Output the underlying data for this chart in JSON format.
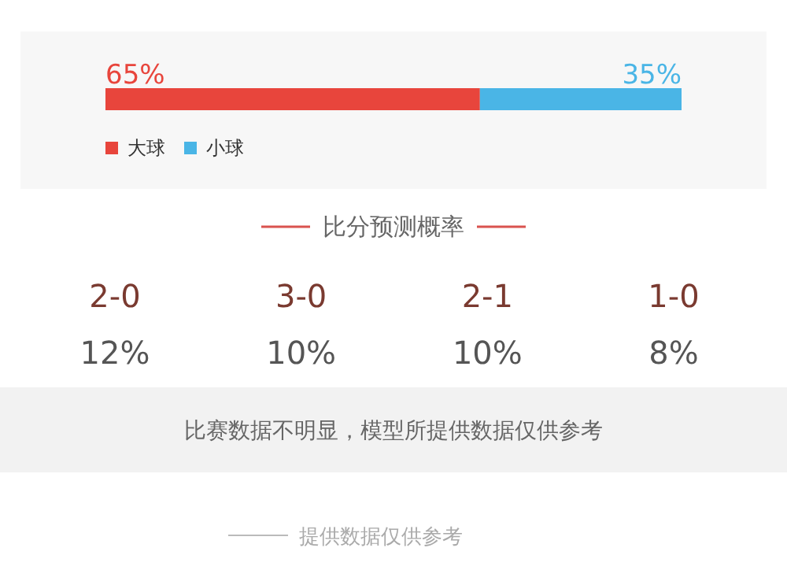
{
  "chart_data": [
    {
      "type": "bar",
      "orientation": "horizontal",
      "stacked": true,
      "categories": [
        null
      ],
      "legend": "bottom left",
      "series": [
        {
          "name": "大球",
          "color": "#e8453c",
          "values": [
            65
          ],
          "value_labels": [
            "65%"
          ]
        },
        {
          "name": "小球",
          "color": "#4ab5e6",
          "values": [
            35
          ],
          "value_labels": [
            "35%"
          ]
        }
      ]
    },
    {
      "type": "other",
      "title": "比分预测概率",
      "categories": [
        "2-0",
        "3-0",
        "2-1",
        "1-0"
      ],
      "value_labels": [
        "12%",
        "10%",
        "10%",
        "8%"
      ],
      "annotations": [
        "比赛数据不明显，模型所提供数据仅供参考",
        "提供数据仅供参考"
      ]
    }
  ]
}
